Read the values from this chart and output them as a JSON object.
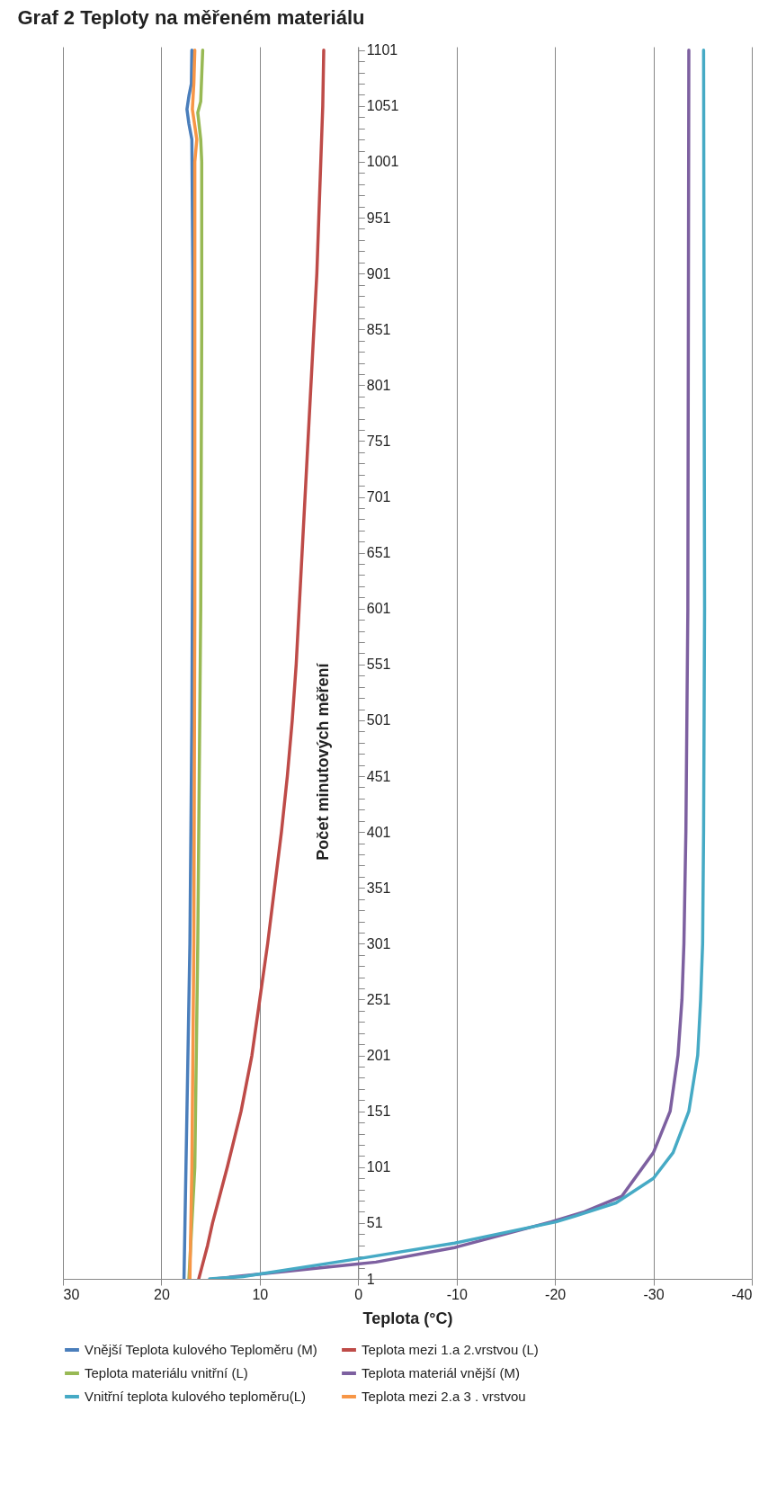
{
  "chart_data": {
    "type": "line",
    "title": "Graf 2 Teploty na měřeném materiálu",
    "xlabel": "Teplota (°C)",
    "ylabel": "Počet minutových měření",
    "xlim": [
      30,
      -40
    ],
    "xticks": [
      30,
      20,
      10,
      0,
      -10,
      -20,
      -30,
      -40
    ],
    "ylim": [
      1,
      1104
    ],
    "yticks": [
      1,
      {
        "value": 11,
        "label": null
      },
      {
        "value": 21,
        "label": null
      },
      {
        "value": 31,
        "label": null
      },
      {
        "value": 41,
        "label": null
      },
      51,
      {
        "value": 61,
        "label": null
      },
      {
        "value": 71,
        "label": null
      },
      {
        "value": 81,
        "label": null
      },
      {
        "value": 91,
        "label": null
      },
      101,
      {
        "value": 111,
        "label": null
      },
      {
        "value": 121,
        "label": null
      },
      {
        "value": 131,
        "label": null
      },
      {
        "value": 141,
        "label": null
      },
      151,
      {
        "value": 161,
        "label": null
      },
      {
        "value": 171,
        "label": null
      },
      {
        "value": 181,
        "label": null
      },
      {
        "value": 191,
        "label": null
      },
      201,
      {
        "value": 211,
        "label": null
      },
      {
        "value": 221,
        "label": null
      },
      {
        "value": 231,
        "label": null
      },
      {
        "value": 241,
        "label": null
      },
      251,
      {
        "value": 261,
        "label": null
      },
      {
        "value": 271,
        "label": null
      },
      {
        "value": 281,
        "label": null
      },
      {
        "value": 291,
        "label": null
      },
      301,
      {
        "value": 311,
        "label": null
      },
      {
        "value": 321,
        "label": null
      },
      {
        "value": 331,
        "label": null
      },
      {
        "value": 341,
        "label": null
      },
      351,
      {
        "value": 361,
        "label": null
      },
      {
        "value": 371,
        "label": null
      },
      {
        "value": 381,
        "label": null
      },
      {
        "value": 391,
        "label": null
      },
      401,
      {
        "value": 411,
        "label": null
      },
      {
        "value": 421,
        "label": null
      },
      {
        "value": 431,
        "label": null
      },
      {
        "value": 441,
        "label": null
      },
      451,
      {
        "value": 461,
        "label": null
      },
      {
        "value": 471,
        "label": null
      },
      {
        "value": 481,
        "label": null
      },
      {
        "value": 491,
        "label": null
      },
      501,
      {
        "value": 511,
        "label": null
      },
      {
        "value": 521,
        "label": null
      },
      {
        "value": 531,
        "label": null
      },
      {
        "value": 541,
        "label": null
      },
      551,
      {
        "value": 561,
        "label": null
      },
      {
        "value": 571,
        "label": null
      },
      {
        "value": 581,
        "label": null
      },
      {
        "value": 591,
        "label": null
      },
      601,
      {
        "value": 611,
        "label": null
      },
      {
        "value": 621,
        "label": null
      },
      {
        "value": 631,
        "label": null
      },
      {
        "value": 641,
        "label": null
      },
      651,
      {
        "value": 661,
        "label": null
      },
      {
        "value": 671,
        "label": null
      },
      {
        "value": 681,
        "label": null
      },
      {
        "value": 691,
        "label": null
      },
      701,
      {
        "value": 711,
        "label": null
      },
      {
        "value": 721,
        "label": null
      },
      {
        "value": 731,
        "label": null
      },
      {
        "value": 741,
        "label": null
      },
      751,
      {
        "value": 761,
        "label": null
      },
      {
        "value": 771,
        "label": null
      },
      {
        "value": 781,
        "label": null
      },
      {
        "value": 791,
        "label": null
      },
      801,
      {
        "value": 811,
        "label": null
      },
      {
        "value": 821,
        "label": null
      },
      {
        "value": 831,
        "label": null
      },
      {
        "value": 841,
        "label": null
      },
      851,
      {
        "value": 861,
        "label": null
      },
      {
        "value": 871,
        "label": null
      },
      {
        "value": 881,
        "label": null
      },
      {
        "value": 891,
        "label": null
      },
      901,
      {
        "value": 911,
        "label": null
      },
      {
        "value": 921,
        "label": null
      },
      {
        "value": 931,
        "label": null
      },
      {
        "value": 941,
        "label": null
      },
      951,
      {
        "value": 961,
        "label": null
      },
      {
        "value": 971,
        "label": null
      },
      {
        "value": 981,
        "label": null
      },
      {
        "value": 991,
        "label": null
      },
      1001,
      {
        "value": 1011,
        "label": null
      },
      {
        "value": 1021,
        "label": null
      },
      {
        "value": 1031,
        "label": null
      },
      {
        "value": 1041,
        "label": null
      },
      1051,
      {
        "value": 1061,
        "label": null
      },
      {
        "value": 1071,
        "label": null
      },
      {
        "value": 1081,
        "label": null
      },
      {
        "value": 1091,
        "label": null
      },
      1101
    ],
    "grid": "x",
    "legend": "bottom",
    "marker": "none",
    "line_style": "solid",
    "series": [
      {
        "name": "Vnější Teplota kulového Teploměru (M)",
        "color": "#4a7ebb",
        "values": [
          1,
          51,
          101,
          201,
          301,
          401,
          501,
          701,
          901,
          1021,
          1035,
          1048,
          1060,
          1071,
          1101
        ],
        "x": [
          17.7,
          17.6,
          17.5,
          17.3,
          17.1,
          17.0,
          16.9,
          16.8,
          16.8,
          16.9,
          17.2,
          17.4,
          17.2,
          16.95,
          16.9
        ]
      },
      {
        "name": "Teplota mezi 1.a 2.vrstvou (L)",
        "color": "#be4b48",
        "values": [
          1,
          11,
          31,
          51,
          101,
          151,
          201,
          251,
          301,
          351,
          401,
          451,
          501,
          551,
          601,
          651,
          701,
          751,
          801,
          851,
          901,
          951,
          1001,
          1051,
          1101
        ],
        "x": [
          16.2,
          15.9,
          15.3,
          14.8,
          13.3,
          11.9,
          10.8,
          10.0,
          9.2,
          8.5,
          7.8,
          7.2,
          6.7,
          6.3,
          6.0,
          5.7,
          5.4,
          5.1,
          4.8,
          4.5,
          4.2,
          4.0,
          3.8,
          3.6,
          3.5
        ]
      },
      {
        "name": "Teplota materiálu vnitřní (L)",
        "color": "#98b954",
        "values": [
          1,
          101,
          301,
          601,
          851,
          1001,
          1021,
          1045,
          1055,
          1101
        ],
        "x": [
          17.2,
          16.6,
          16.3,
          16.0,
          15.9,
          15.9,
          16.0,
          16.3,
          16.0,
          15.8
        ]
      },
      {
        "name": "Teplota materiál vnější (M)",
        "color": "#7d60a0",
        "values": [
          1,
          4,
          14,
          16,
          29,
          52,
          61,
          75,
          114,
          151,
          201,
          251,
          301,
          401,
          601,
          1101
        ],
        "x": [
          14.6,
          11.4,
          0.3,
          -1.8,
          -9.8,
          -19.6,
          -23.0,
          -26.8,
          -30.0,
          -31.7,
          -32.5,
          -32.9,
          -33.1,
          -33.3,
          -33.5,
          -33.6
        ]
      },
      {
        "name": "Vnitřní teplota kulového teploměru(L)",
        "color": "#46aac5",
        "values": [
          1,
          3,
          19,
          33,
          52,
          57,
          69,
          91,
          114,
          151,
          201,
          251,
          301,
          401,
          601,
          1101
        ],
        "x": [
          15.1,
          11.7,
          0.0,
          -9.8,
          -20.1,
          -22.0,
          -26.2,
          -30.0,
          -32.0,
          -33.6,
          -34.5,
          -34.8,
          -35.0,
          -35.1,
          -35.2,
          -35.1
        ]
      },
      {
        "name": "Teplota mezi 2.a 3 . vrstvou",
        "color": "#f79646",
        "values": [
          1,
          101,
          301,
          601,
          1001,
          1021,
          1048,
          1071,
          1101
        ],
        "x": [
          17.1,
          16.9,
          16.7,
          16.6,
          16.6,
          16.4,
          16.85,
          16.7,
          16.6
        ]
      }
    ]
  }
}
